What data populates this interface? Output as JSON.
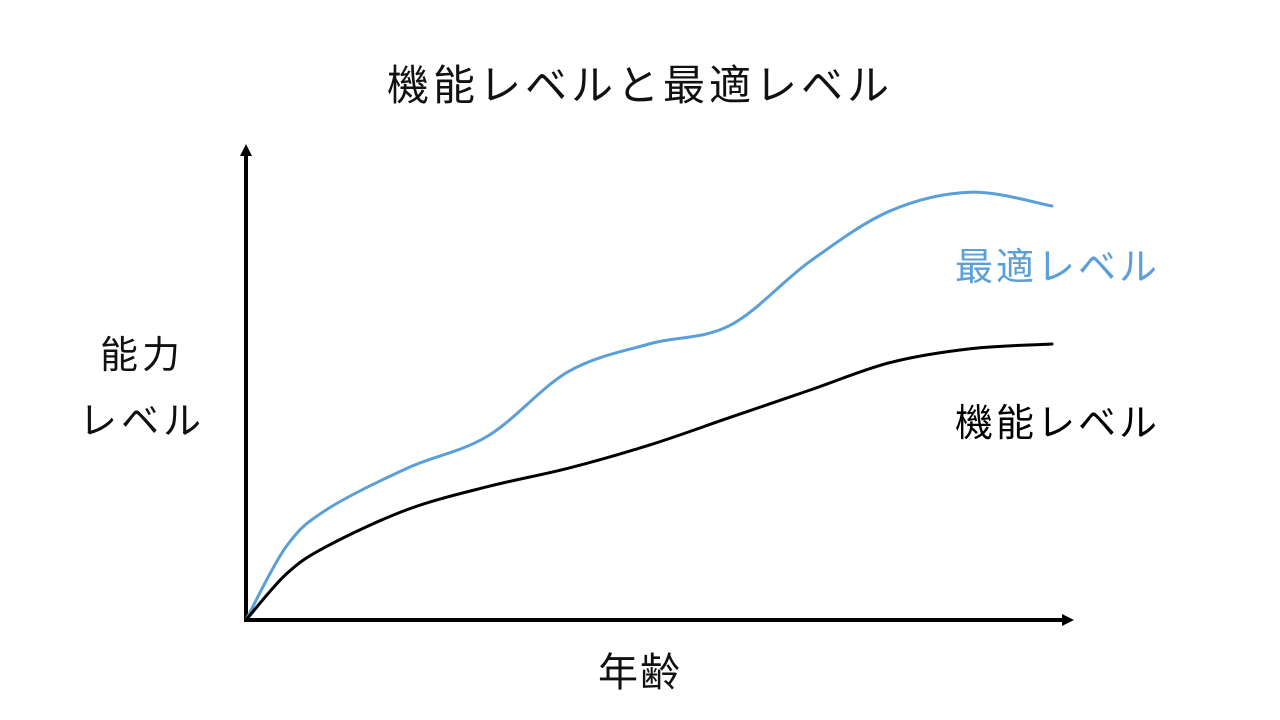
{
  "chart_data": {
    "type": "line",
    "title": "機能レベルと最適レベル",
    "xlabel": "年齢",
    "ylabel_lines": [
      "能力",
      "レベル"
    ],
    "ylabel": "能力レベル",
    "xlim": [
      0,
      100
    ],
    "ylim": [
      0,
      100
    ],
    "grid": false,
    "legend": "direct labels at right end of each line",
    "x": [
      0,
      5,
      10,
      20,
      30,
      40,
      50,
      60,
      70,
      80,
      90,
      100
    ],
    "series": [
      {
        "name": "最適レベル",
        "color": "#5a9fd8",
        "values": [
          0,
          16,
          24,
          33,
          40,
          54,
          60,
          64,
          78,
          89,
          93,
          90
        ]
      },
      {
        "name": "機能レベル",
        "color": "#000000",
        "values": [
          0,
          10,
          16,
          24,
          29,
          33,
          38,
          44,
          50,
          56,
          59,
          60
        ]
      }
    ]
  }
}
